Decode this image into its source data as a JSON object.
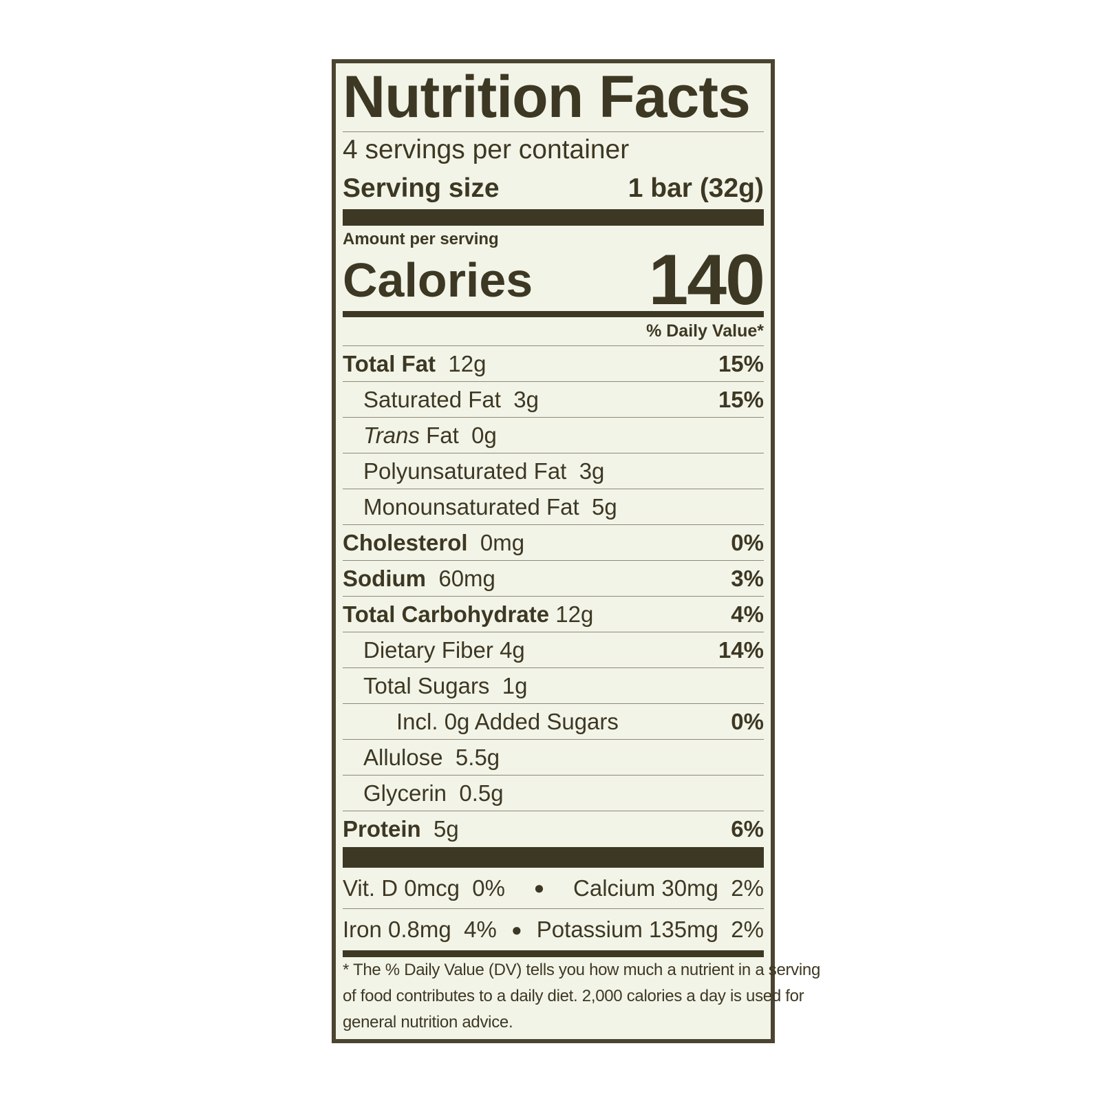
{
  "header": {
    "title": "Nutrition Facts",
    "servings": "4 servings per container",
    "serving_size_label": "Serving size",
    "serving_size": "1 bar (32g)"
  },
  "calories": {
    "amount_label": "Amount per serving",
    "label": "Calories",
    "value": "140"
  },
  "daily_value_header": "% Daily Value*",
  "nutrients": [
    {
      "name": "Total Fat",
      "amount": "12g",
      "dv": "15%"
    },
    {
      "name": "Saturated Fat",
      "amount": "3g",
      "dv": "15%"
    },
    {
      "name_italic": "Trans",
      "name": "Fat",
      "amount": "0g"
    },
    {
      "name": "Polyunsaturated Fat",
      "amount": "3g"
    },
    {
      "name": "Monounsaturated Fat",
      "amount": "5g"
    },
    {
      "name": "Cholesterol",
      "amount": "0mg",
      "dv": "0%"
    },
    {
      "name": "Sodium",
      "amount": "60mg",
      "dv": "3%"
    },
    {
      "name": "Total Carbohydrate",
      "amount": "12g",
      "dv": "4%"
    },
    {
      "name": "Dietary Fiber",
      "amount": "4g",
      "dv": "14%"
    },
    {
      "name": "Total Sugars",
      "amount": "1g"
    },
    {
      "name": "Incl. 0g Added Sugars",
      "dv": "0%"
    },
    {
      "name": "Allulose",
      "amount": "5.5g"
    },
    {
      "name": "Glycerin",
      "amount": "0.5g"
    },
    {
      "name": "Protein",
      "amount": "5g",
      "dv": "6%"
    }
  ],
  "vitamins": [
    [
      {
        "name": "Vit. D 0mcg",
        "dv": "0%"
      },
      {
        "name": "Calcium 30mg",
        "dv": "2%"
      }
    ],
    [
      {
        "name": "Iron 0.8mg",
        "dv": "4%"
      },
      {
        "name": "Potassium 135mg",
        "dv": "2%"
      }
    ]
  ],
  "footnote": [
    "* The % Daily Value (DV) tells you how much a nutrient in a serving",
    "of food contributes to a daily diet. 2,000 calories a day is used for",
    "general nutrition advice."
  ]
}
